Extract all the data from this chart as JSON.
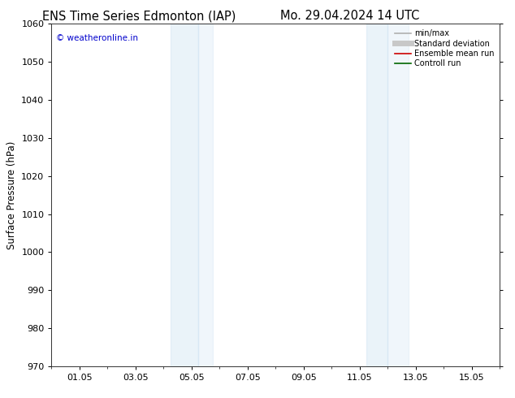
{
  "title_left": "ENS Time Series Edmonton (IAP)",
  "title_right": "Mo. 29.04.2024 14 UTC",
  "ylabel": "Surface Pressure (hPa)",
  "ylim": [
    970,
    1060
  ],
  "yticks": [
    970,
    980,
    990,
    1000,
    1010,
    1020,
    1030,
    1040,
    1050,
    1060
  ],
  "xlim": [
    0,
    16
  ],
  "xtick_labels": [
    "01.05",
    "03.05",
    "05.05",
    "07.05",
    "09.05",
    "11.05",
    "13.05",
    "15.05"
  ],
  "xtick_positions": [
    1,
    3,
    5,
    7,
    9,
    11,
    13,
    15
  ],
  "shaded_bands": [
    {
      "x_start": 4.25,
      "x_end": 5.25,
      "alpha": 0.35
    },
    {
      "x_start": 5.25,
      "x_end": 5.75,
      "alpha": 0.25
    },
    {
      "x_start": 11.25,
      "x_end": 12.0,
      "alpha": 0.35
    },
    {
      "x_start": 12.0,
      "x_end": 12.75,
      "alpha": 0.25
    }
  ],
  "band_color": "#c5dff0",
  "watermark_text": "© weatheronline.in",
  "watermark_color": "#0000cc",
  "legend_entries": [
    {
      "label": "min/max",
      "color": "#b0b0b0",
      "lw": 1.2
    },
    {
      "label": "Standard deviation",
      "color": "#c8c8c8",
      "lw": 5
    },
    {
      "label": "Ensemble mean run",
      "color": "#cc0000",
      "lw": 1.2
    },
    {
      "label": "Controll run",
      "color": "#006600",
      "lw": 1.2
    }
  ],
  "background_color": "#ffffff",
  "title_fontsize": 10.5,
  "axis_label_fontsize": 8.5,
  "tick_fontsize": 8,
  "watermark_fontsize": 7.5,
  "legend_fontsize": 7
}
